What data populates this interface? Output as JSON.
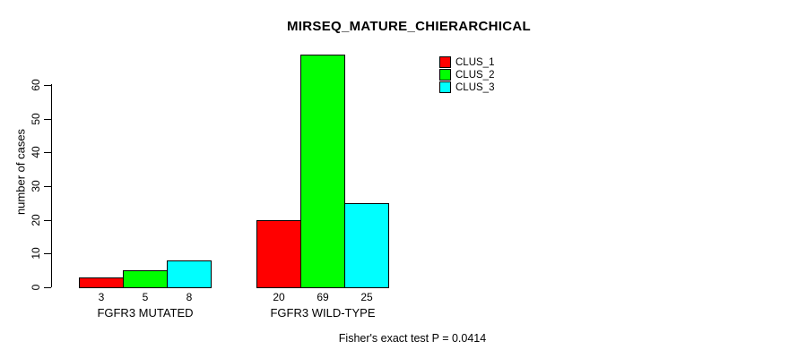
{
  "chart_data": {
    "type": "bar",
    "title": "MIRSEQ_MATURE_CHIERARCHICAL",
    "ylabel": "number of cases",
    "xlabel": "",
    "categories": [
      "FGFR3 MUTATED",
      "FGFR3 WILD-TYPE"
    ],
    "series": [
      {
        "name": "CLUS_1",
        "color": "#FF0000",
        "values": [
          3,
          20
        ]
      },
      {
        "name": "CLUS_2",
        "color": "#00FF00",
        "values": [
          5,
          69
        ]
      },
      {
        "name": "CLUS_3",
        "color": "#00FFFF",
        "values": [
          8,
          25
        ]
      }
    ],
    "bar_value_labels": [
      [
        3,
        5,
        8
      ],
      [
        20,
        69,
        25
      ]
    ],
    "yticks": [
      0,
      10,
      20,
      30,
      40,
      50,
      60
    ],
    "ylim": [
      0,
      60
    ],
    "grid": false,
    "legend_position": "top-right",
    "annotation": "Fisher's exact test P = 0.0414"
  },
  "colors": {
    "background": "#FFFFFF",
    "axis": "#000000",
    "text": "#000000",
    "clus_1": "#FF0000",
    "clus_2": "#00FF00",
    "clus_3": "#00FFFF"
  }
}
